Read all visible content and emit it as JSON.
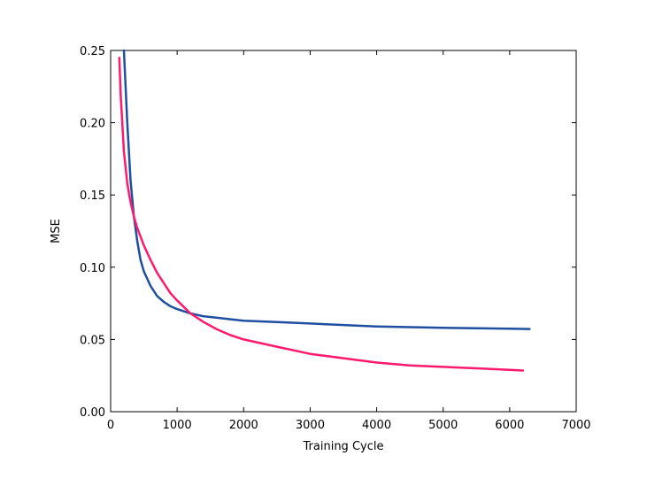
{
  "chart_data": {
    "type": "line",
    "title": "",
    "xlabel": "Training Cycle",
    "ylabel": "MSE",
    "xlim": [
      0,
      7000
    ],
    "ylim": [
      0,
      0.25
    ],
    "x_ticks": [
      0,
      1000,
      2000,
      3000,
      4000,
      5000,
      6000,
      7000
    ],
    "x_tick_labels": [
      "0",
      "1000",
      "2000",
      "3000",
      "4000",
      "5000",
      "6000",
      "7000"
    ],
    "y_ticks": [
      0.0,
      0.05,
      0.1,
      0.15,
      0.2,
      0.25
    ],
    "y_tick_labels": [
      "0.00",
      "0.05",
      "0.10",
      "0.15",
      "0.20",
      "0.25"
    ],
    "grid": false,
    "legend": "none",
    "series": [
      {
        "color": "#1f4fa0",
        "x": [
          200,
          250,
          300,
          350,
          400,
          450,
          500,
          600,
          700,
          800,
          900,
          1000,
          1200,
          1400,
          1600,
          1800,
          2000,
          2500,
          3000,
          3500,
          4000,
          4500,
          5000,
          5500,
          6000,
          6300
        ],
        "y": [
          0.25,
          0.2,
          0.16,
          0.135,
          0.118,
          0.105,
          0.097,
          0.087,
          0.08,
          0.076,
          0.073,
          0.071,
          0.068,
          0.066,
          0.065,
          0.064,
          0.063,
          0.062,
          0.061,
          0.06,
          0.059,
          0.0585,
          0.058,
          0.0578,
          0.0575,
          0.0572
        ]
      },
      {
        "color": "#ff1a6e",
        "x": [
          130,
          150,
          200,
          250,
          300,
          350,
          400,
          500,
          600,
          700,
          800,
          900,
          1000,
          1200,
          1400,
          1600,
          1800,
          2000,
          2500,
          3000,
          3500,
          4000,
          4500,
          5000,
          5500,
          6000,
          6200
        ],
        "y": [
          0.245,
          0.22,
          0.18,
          0.158,
          0.145,
          0.135,
          0.127,
          0.115,
          0.105,
          0.096,
          0.089,
          0.082,
          0.077,
          0.068,
          0.062,
          0.057,
          0.053,
          0.05,
          0.045,
          0.04,
          0.037,
          0.034,
          0.032,
          0.031,
          0.03,
          0.029,
          0.0285
        ]
      }
    ]
  }
}
